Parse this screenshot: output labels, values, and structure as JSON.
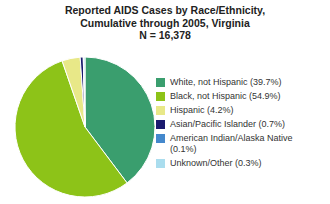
{
  "chart_data": {
    "type": "pie",
    "title": "Reported AIDS Cases by Race/Ethnicity,\nCumulative through 2005, Virginia\nN = 16,378",
    "categories": [
      "White, not Hispanic (39.7%)",
      "Black, not Hispanic (54.9%)",
      "Hispanic (4.2%)",
      "Asian/Pacific Islander (0.7%)",
      "American Indian/Alaska Native\n(0.1%)",
      "Unknown/Other (0.3%)"
    ],
    "values": [
      39.7,
      54.9,
      4.2,
      0.7,
      0.1,
      0.3
    ],
    "colors": [
      "#3A9E6E",
      "#8DC318",
      "#E8E888",
      "#1A1A6E",
      "#4488CC",
      "#AADDEE"
    ],
    "legend": "right"
  }
}
